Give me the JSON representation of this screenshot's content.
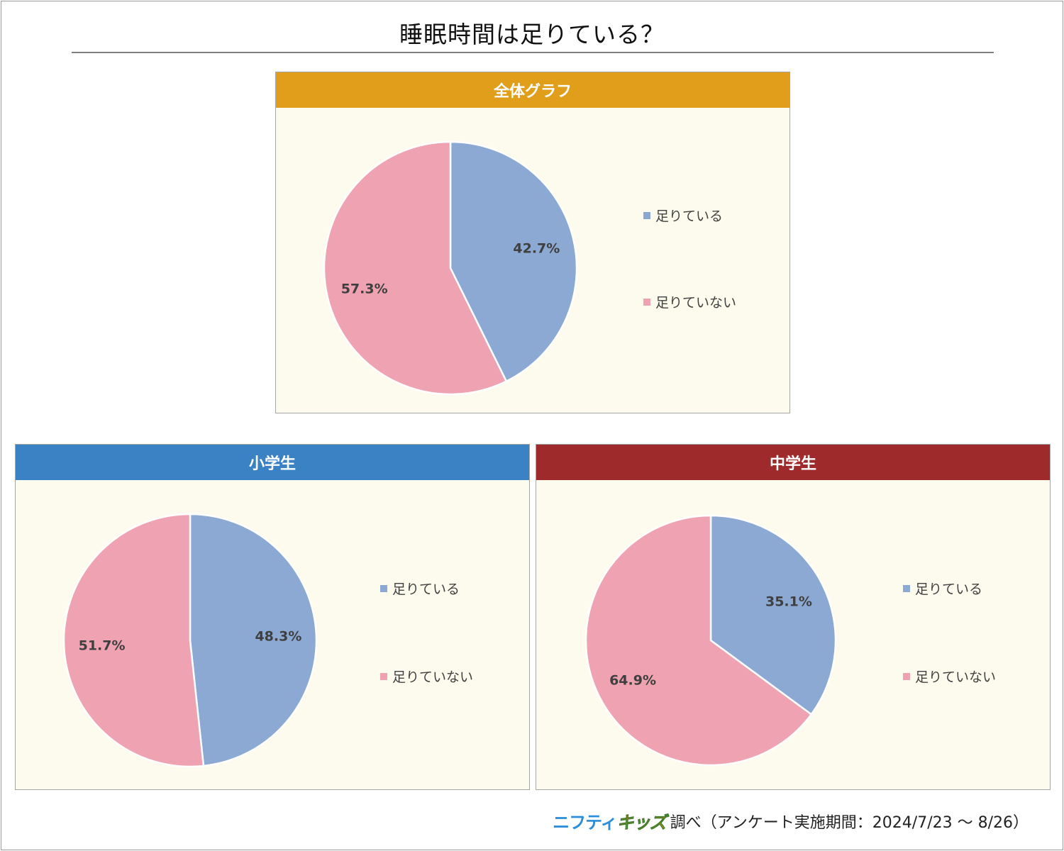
{
  "title": "睡眠時間は足りている？",
  "colors": {
    "positive": "#8ba9d3",
    "negative": "#efa3b2"
  },
  "legend_labels": [
    "足りている",
    "足りていない"
  ],
  "footer": {
    "brand_a": "ニフティ",
    "brand_b": "キッズ",
    "text": "調べ（アンケート実施期間：2024/7/23 ～ 8/26）"
  },
  "chart_data": [
    {
      "type": "pie",
      "title": "全体グラフ",
      "header_color": "#e09e1b",
      "categories": [
        "足りている",
        "足りていない"
      ],
      "values": [
        42.7,
        57.3
      ],
      "value_labels": [
        "42.7%",
        "57.3%"
      ],
      "legend": "right"
    },
    {
      "type": "pie",
      "title": "小学生",
      "header_color": "#3a82c4",
      "categories": [
        "足りている",
        "足りていない"
      ],
      "values": [
        48.3,
        51.7
      ],
      "value_labels": [
        "48.3%",
        "51.7%"
      ],
      "legend": "right"
    },
    {
      "type": "pie",
      "title": "中学生",
      "header_color": "#9e2a2b",
      "categories": [
        "足りている",
        "足りていない"
      ],
      "values": [
        35.1,
        64.9
      ],
      "value_labels": [
        "35.1%",
        "64.9%"
      ],
      "legend": "right"
    }
  ]
}
